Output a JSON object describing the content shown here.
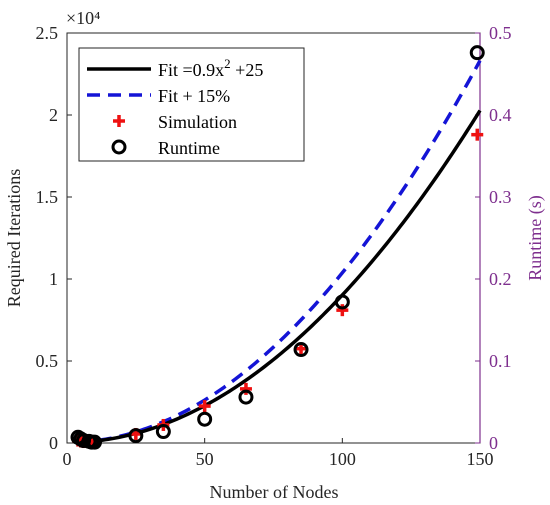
{
  "chart_data": {
    "type": "line",
    "xlabel": "Number of Nodes",
    "ylabel_left": "Required Iterations",
    "ylabel_right": "Runtime (s)",
    "exponent_label": "×10⁴",
    "xlim": [
      0,
      150
    ],
    "ylim_left": [
      0,
      25000
    ],
    "ylim_right": [
      0,
      0.5
    ],
    "x_ticks": [
      "0",
      "50",
      "100",
      "150"
    ],
    "y_ticks_left": [
      "0",
      "0.5",
      "1",
      "1.5",
      "2",
      "2.5"
    ],
    "y_ticks_right": [
      "0",
      "0.1",
      "0.2",
      "0.3",
      "0.4",
      "0.5"
    ],
    "grid": false,
    "legend_position": "top-left",
    "fit_x_range": [
      4,
      150
    ],
    "legend": [
      {
        "label": "Fit =0.9x",
        "superscript": "2",
        "suffix": " +25"
      },
      {
        "label": "Fit + 15%"
      },
      {
        "label": "Simulation"
      },
      {
        "label": "Runtime"
      }
    ],
    "series": [
      {
        "name": "Fit",
        "formula": "0.9*x^2 + 25",
        "color": "#000000",
        "style": "solid"
      },
      {
        "name": "Fit + 15%",
        "formula": "1.15*(0.9*x^2 + 25)",
        "color": "#1414d6",
        "style": "dashed"
      },
      {
        "name": "Simulation",
        "axis": "left",
        "marker": "plus",
        "color": "#ee1111",
        "x": [
          4,
          5,
          6,
          8,
          9,
          10,
          25,
          35,
          50,
          65,
          85,
          100,
          149
        ],
        "y": [
          150,
          90,
          60,
          100,
          110,
          120,
          550,
          1100,
          2250,
          3300,
          5750,
          8100,
          18800
        ]
      },
      {
        "name": "Runtime",
        "axis": "right",
        "marker": "circle",
        "color": "#000000",
        "x": [
          4,
          5,
          6,
          8,
          9,
          10,
          25,
          35,
          50,
          65,
          85,
          100,
          149
        ],
        "y": [
          0.007,
          0.005,
          0.003,
          0.002,
          0.001,
          0.001,
          0.009,
          0.014,
          0.029,
          0.056,
          0.114,
          0.172,
          0.476
        ]
      }
    ]
  }
}
